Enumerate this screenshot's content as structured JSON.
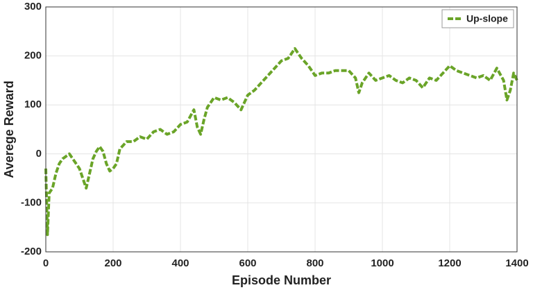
{
  "chart_data": {
    "type": "line",
    "xlabel": "Episode Number",
    "ylabel": "Averege Reward",
    "xlim": [
      0,
      1400
    ],
    "xticks": [
      0,
      200,
      400,
      600,
      800,
      1000,
      1200,
      1400
    ],
    "ylim": [
      -200,
      300
    ],
    "yticks": [
      -200,
      -100,
      0,
      100,
      200,
      300
    ],
    "grid": true,
    "legend": "upper right",
    "x": [
      0,
      5,
      10,
      20,
      30,
      40,
      50,
      60,
      70,
      80,
      90,
      100,
      110,
      120,
      130,
      140,
      150,
      160,
      170,
      180,
      190,
      200,
      210,
      220,
      240,
      260,
      280,
      300,
      320,
      340,
      360,
      380,
      400,
      420,
      440,
      450,
      460,
      470,
      480,
      500,
      520,
      540,
      560,
      580,
      600,
      620,
      640,
      660,
      680,
      700,
      720,
      740,
      760,
      780,
      800,
      820,
      840,
      860,
      880,
      900,
      920,
      930,
      940,
      960,
      980,
      1000,
      1020,
      1040,
      1060,
      1080,
      1100,
      1120,
      1140,
      1160,
      1180,
      1200,
      1220,
      1240,
      1260,
      1280,
      1300,
      1320,
      1340,
      1360,
      1370,
      1380,
      1390,
      1400
    ],
    "series": [
      {
        "name": "Up-slope",
        "color": "#6aa428",
        "values": [
          -30,
          -165,
          -80,
          -70,
          -40,
          -20,
          -10,
          -5,
          0,
          -10,
          -20,
          -30,
          -50,
          -70,
          -40,
          -10,
          5,
          15,
          5,
          -20,
          -35,
          -30,
          -20,
          10,
          25,
          25,
          35,
          30,
          45,
          50,
          40,
          45,
          60,
          65,
          90,
          55,
          40,
          70,
          95,
          115,
          110,
          115,
          105,
          90,
          120,
          130,
          145,
          160,
          175,
          190,
          195,
          215,
          195,
          180,
          160,
          165,
          165,
          170,
          170,
          170,
          155,
          125,
          145,
          165,
          150,
          155,
          160,
          150,
          145,
          155,
          150,
          135,
          155,
          150,
          165,
          180,
          170,
          165,
          160,
          155,
          160,
          150,
          175,
          150,
          110,
          130,
          165,
          150
        ]
      }
    ]
  }
}
